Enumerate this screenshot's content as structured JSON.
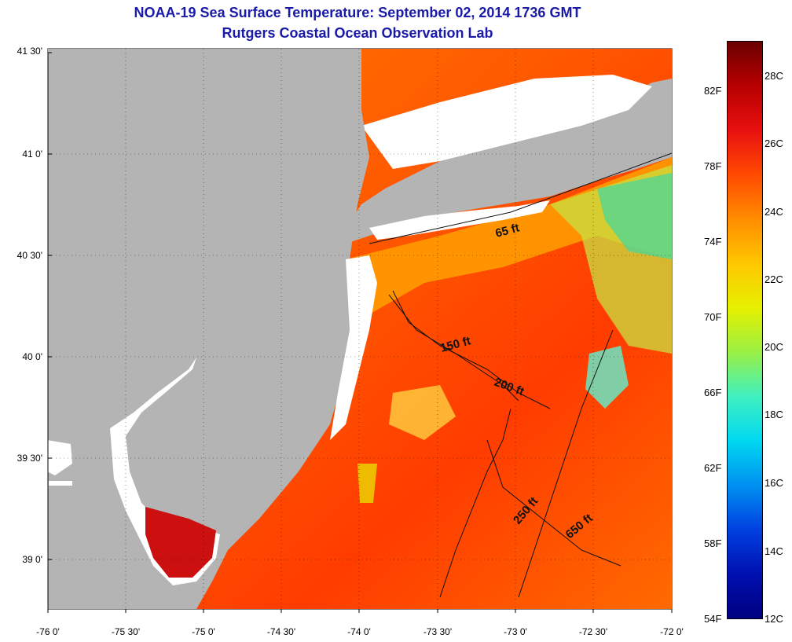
{
  "title": "NOAA-19 Sea Surface Temperature:  September 02, 2014 1736 GMT",
  "subtitle": "Rutgers Coastal Ocean Observation Lab",
  "lat_labels": [
    "41 30'",
    "41 0'",
    "40 30'",
    "40 0'",
    "39 30'",
    "39 0'"
  ],
  "lon_labels": [
    "-76 0'",
    "-75 30'",
    "-75 0'",
    "-74 30'",
    "-74 0'",
    "-73 30'",
    "-73 0'",
    "-72 30'",
    "-72 0'"
  ],
  "colorbar": {
    "fahrenheit_labels": [
      "82F",
      "78F",
      "74F",
      "70F",
      "66F",
      "62F",
      "58F",
      "54F"
    ],
    "celsius_labels": [
      "28C",
      "26C",
      "24C",
      "22C",
      "20C",
      "18C",
      "16C",
      "14C",
      "12C"
    ],
    "colors": [
      "#6b0000",
      "#b80000",
      "#e81010",
      "#ff4a00",
      "#ff8c00",
      "#ffc800",
      "#e6f000",
      "#9af044",
      "#40f0c0",
      "#00d8f0",
      "#0090f0",
      "#0040e0",
      "#0010b0",
      "#000080"
    ]
  },
  "isobath_labels": [
    "65 ft",
    "150 ft",
    "200 ft",
    "250 ft",
    "650 ft"
  ],
  "colors": {
    "land": "#b4b4b4",
    "cloud": "#ffffff",
    "warm_sst": "#ff5a00",
    "title": "#1a1aa8"
  }
}
